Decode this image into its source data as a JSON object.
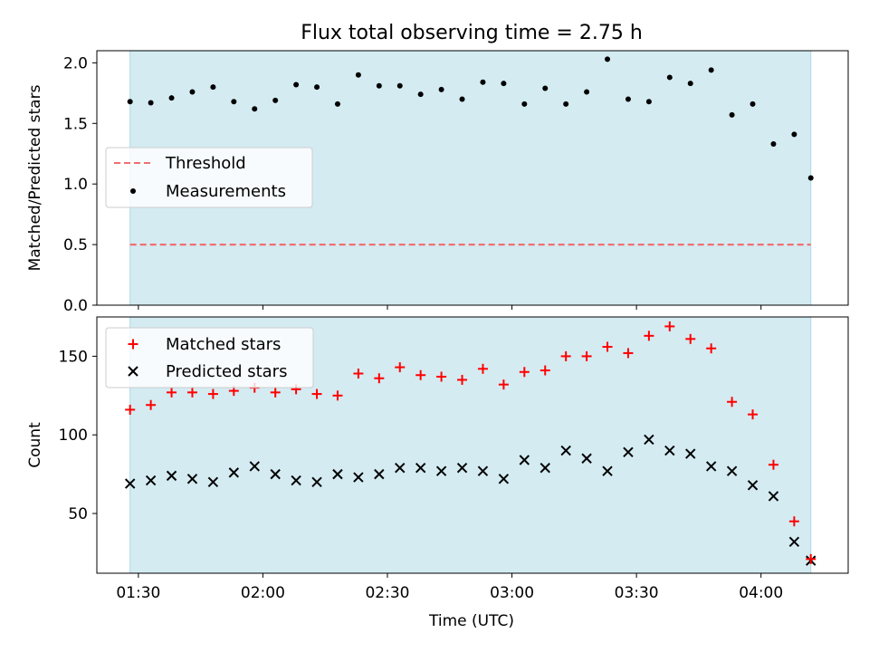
{
  "title": "Flux total observing time = 2.75 h",
  "xlabel": "Time (UTC)",
  "x_tick_labels": [
    "01:30",
    "02:00",
    "02:30",
    "03:00",
    "03:30",
    "04:00"
  ],
  "x_tick_values": [
    "01:30",
    "02:00",
    "02:30",
    "03:00",
    "03:30",
    "04:00"
  ],
  "xlim": [
    "01:20",
    "04:21"
  ],
  "shaded_span": [
    "01:28",
    "04:12"
  ],
  "colors": {
    "span": "#add8e6",
    "threshold": "#f07070",
    "measurements": "#000000",
    "matched": "#ff0000",
    "predicted": "#000000"
  },
  "chart_data": [
    {
      "type": "scatter",
      "ylabel": "Matched/Predicted stars",
      "ylim": [
        0,
        2.1
      ],
      "y_tick_labels": [
        "0.0",
        "0.5",
        "1.0",
        "1.5",
        "2.0"
      ],
      "y_tick_values": [
        0,
        0.5,
        1.0,
        1.5,
        2.0
      ],
      "legend_position": "center-left",
      "threshold": {
        "name": "Threshold",
        "value": 0.5
      },
      "series": [
        {
          "name": "Measurements",
          "x": [
            "01:28",
            "01:33",
            "01:38",
            "01:43",
            "01:48",
            "01:53",
            "01:58",
            "02:03",
            "02:08",
            "02:13",
            "02:18",
            "02:23",
            "02:28",
            "02:33",
            "02:38",
            "02:43",
            "02:48",
            "02:53",
            "02:58",
            "03:03",
            "03:08",
            "03:13",
            "03:18",
            "03:23",
            "03:28",
            "03:33",
            "03:38",
            "03:43",
            "03:48",
            "03:53",
            "03:58",
            "04:03",
            "04:08",
            "04:12"
          ],
          "values": [
            1.68,
            1.67,
            1.71,
            1.76,
            1.8,
            1.68,
            1.62,
            1.69,
            1.82,
            1.8,
            1.66,
            1.9,
            1.81,
            1.81,
            1.74,
            1.78,
            1.7,
            1.84,
            1.83,
            1.66,
            1.79,
            1.66,
            1.76,
            2.03,
            1.7,
            1.68,
            1.88,
            1.83,
            1.94,
            1.57,
            1.66,
            1.33,
            1.41,
            1.05
          ]
        }
      ]
    },
    {
      "type": "scatter",
      "ylabel": "Count",
      "ylim": [
        12,
        175
      ],
      "y_tick_labels": [
        "50",
        "100",
        "150"
      ],
      "y_tick_values": [
        50,
        100,
        150
      ],
      "legend_position": "top-left",
      "series": [
        {
          "name": "Matched stars",
          "marker": "plus",
          "x": [
            "01:28",
            "01:33",
            "01:38",
            "01:43",
            "01:48",
            "01:53",
            "01:58",
            "02:03",
            "02:08",
            "02:13",
            "02:18",
            "02:23",
            "02:28",
            "02:33",
            "02:38",
            "02:43",
            "02:48",
            "02:53",
            "02:58",
            "03:03",
            "03:08",
            "03:13",
            "03:18",
            "03:23",
            "03:28",
            "03:33",
            "03:38",
            "03:43",
            "03:48",
            "03:53",
            "03:58",
            "04:03",
            "04:08",
            "04:12"
          ],
          "values": [
            116,
            119,
            127,
            127,
            126,
            128,
            130,
            127,
            129,
            126,
            125,
            139,
            136,
            143,
            138,
            137,
            135,
            142,
            132,
            140,
            141,
            150,
            150,
            156,
            152,
            163,
            169,
            161,
            155,
            121,
            113,
            81,
            45,
            21
          ]
        },
        {
          "name": "Predicted stars",
          "marker": "x",
          "x": [
            "01:28",
            "01:33",
            "01:38",
            "01:43",
            "01:48",
            "01:53",
            "01:58",
            "02:03",
            "02:08",
            "02:13",
            "02:18",
            "02:23",
            "02:28",
            "02:33",
            "02:38",
            "02:43",
            "02:48",
            "02:53",
            "02:58",
            "03:03",
            "03:08",
            "03:13",
            "03:18",
            "03:23",
            "03:28",
            "03:33",
            "03:38",
            "03:43",
            "03:48",
            "03:53",
            "03:58",
            "04:03",
            "04:08",
            "04:12"
          ],
          "values": [
            69,
            71,
            74,
            72,
            70,
            76,
            80,
            75,
            71,
            70,
            75,
            73,
            75,
            79,
            79,
            77,
            79,
            77,
            72,
            84,
            79,
            90,
            85,
            77,
            89,
            97,
            90,
            88,
            80,
            77,
            68,
            61,
            32,
            20
          ]
        }
      ]
    }
  ]
}
